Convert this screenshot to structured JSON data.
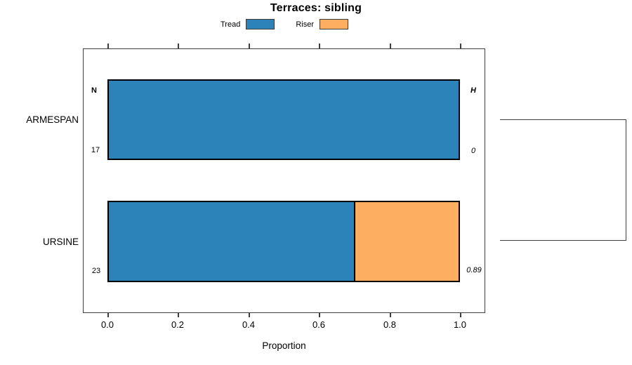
{
  "chart_data": {
    "type": "bar",
    "orientation": "horizontal",
    "stacked": true,
    "title": "Terraces: sibling",
    "xlabel": "Proportion",
    "categories": [
      "ARMESPAN",
      "URSINE"
    ],
    "series": [
      {
        "name": "Tread",
        "color": "#2b83ba",
        "values": [
          1.0,
          0.7
        ]
      },
      {
        "name": "Riser",
        "color": "#fdae61",
        "values": [
          0.0,
          0.3
        ]
      }
    ],
    "xticks": [
      "0.0",
      "0.2",
      "0.4",
      "0.6",
      "0.8",
      "1.0"
    ],
    "xlim": [
      0,
      1
    ],
    "grid": false,
    "legend": {
      "position": "top",
      "entries": [
        "Tread",
        "Riser"
      ]
    },
    "annotations": {
      "n_header": "N",
      "h_header": "H",
      "rows": [
        {
          "category": "ARMESPAN",
          "n": "17",
          "h": "0"
        },
        {
          "category": "URSINE",
          "n": "23",
          "h": "0.89"
        }
      ]
    },
    "dendrogram": {
      "description": "right-side bracket joining ARMESPAN and URSINE"
    }
  },
  "colors": {
    "tread": "#2b83ba",
    "riser": "#fdae61",
    "bar_border": "#000000",
    "axis": "#3f3f3f"
  }
}
